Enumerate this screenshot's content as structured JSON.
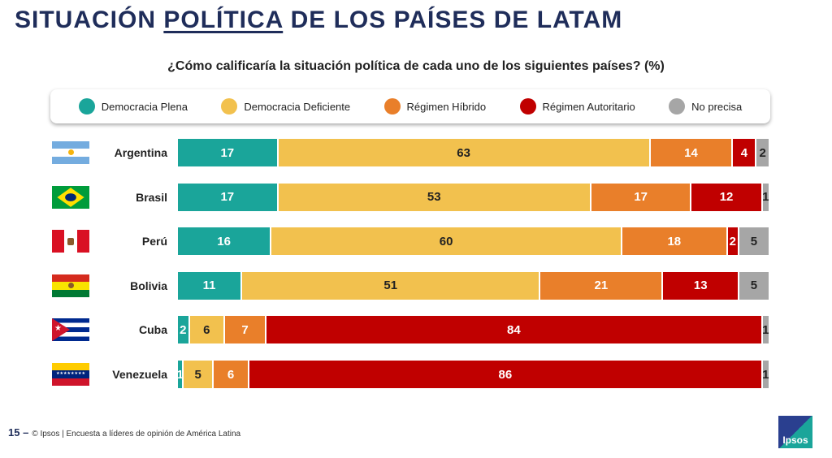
{
  "header": {
    "title_pre": "SITUACIÓN ",
    "title_underlined": "POLÍTICA",
    "title_post": " DE LOS PAÍSES DE LATAM"
  },
  "chart_data": {
    "type": "bar",
    "orientation": "horizontal-stacked",
    "title": "¿Cómo calificaría la situación política de cada uno de los siguientes países? (%)",
    "categories": [
      "Argentina",
      "Brasil",
      "Perú",
      "Bolivia",
      "Cuba",
      "Venezuela"
    ],
    "flags": [
      "flag-argentina",
      "flag-brazil",
      "flag-peru",
      "flag-bolivia",
      "flag-cuba",
      "flag-venezuela"
    ],
    "series": [
      {
        "name": "Democracia Plena",
        "color": "#1aa59a",
        "values": [
          17,
          17,
          16,
          11,
          2,
          1
        ]
      },
      {
        "name": "Democracia Deficiente",
        "color": "#f2c14e",
        "values": [
          63,
          53,
          60,
          51,
          6,
          5
        ]
      },
      {
        "name": "Régimen Híbrido",
        "color": "#e97f2a",
        "values": [
          14,
          17,
          18,
          21,
          7,
          6
        ]
      },
      {
        "name": "Régimen Autoritario",
        "color": "#c00000",
        "values": [
          4,
          12,
          2,
          13,
          84,
          86
        ]
      },
      {
        "name": "No precisa",
        "color": "#a6a6a6",
        "values": [
          2,
          1,
          5,
          5,
          1,
          1
        ]
      }
    ],
    "legend_position": "top"
  },
  "footer": {
    "page": "15 –",
    "text": "© Ipsos | Encuesta a líderes de opinión de América Latina"
  },
  "logo": {
    "text": "Ipsos"
  }
}
